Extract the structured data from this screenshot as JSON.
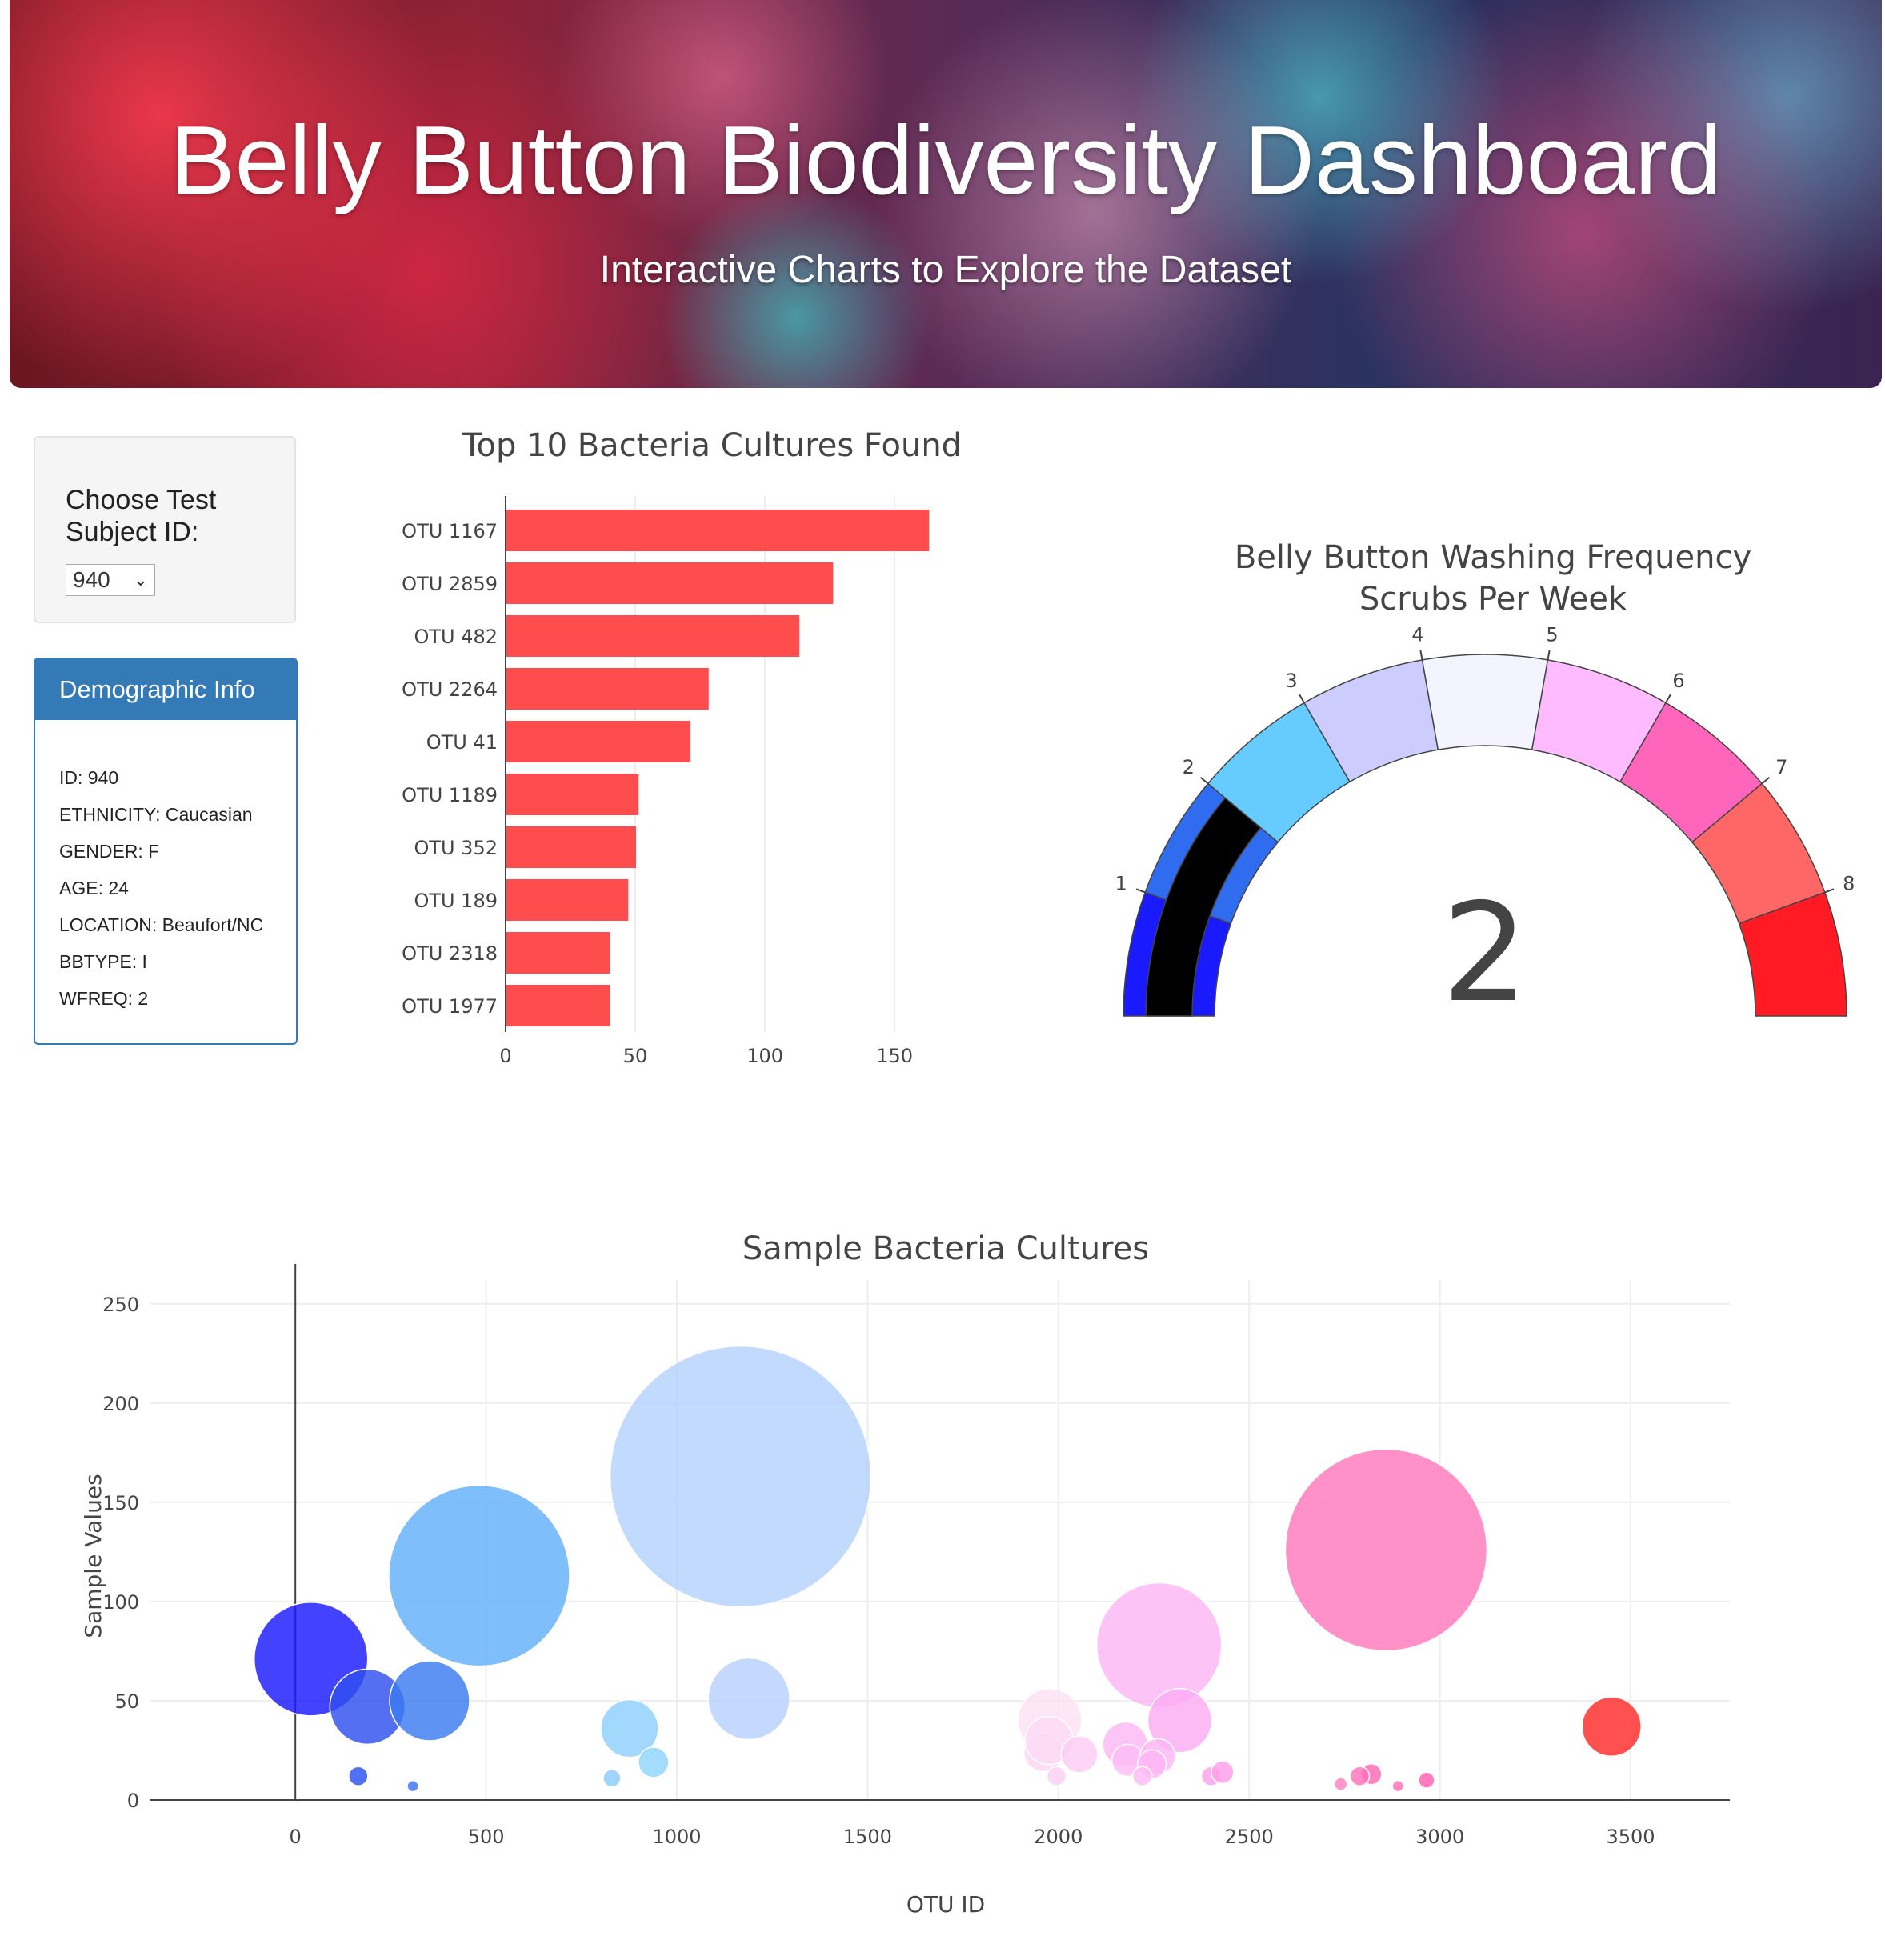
{
  "header": {
    "title": "Belly Button Biodiversity Dashboard",
    "subtitle": "Interactive Charts to Explore the Dataset"
  },
  "selector": {
    "label": "Choose Test Subject ID:",
    "selected": "940"
  },
  "demographics": {
    "heading": "Demographic Info",
    "lines": [
      "ID: 940",
      "ETHNICITY: Caucasian",
      "GENDER: F",
      "AGE: 24",
      "LOCATION: Beaufort/NC",
      "BBTYPE: I",
      "WFREQ: 2"
    ]
  },
  "colors": {
    "bar": "#ff4d4d",
    "panel_blue": "#337ab7",
    "gauge_needle": "#000000"
  },
  "chart_data": [
    {
      "type": "bar",
      "orientation": "horizontal",
      "title": "Top 10 Bacteria Cultures Found",
      "categories": [
        "OTU 1167",
        "OTU 2859",
        "OTU 482",
        "OTU 2264",
        "OTU 41",
        "OTU 1189",
        "OTU 352",
        "OTU 189",
        "OTU 2318",
        "OTU 1977"
      ],
      "values": [
        163,
        126,
        113,
        78,
        71,
        51,
        50,
        47,
        40,
        40
      ],
      "xlim": [
        0,
        170
      ],
      "xticks": [
        "0",
        "50",
        "100",
        "150"
      ],
      "grid": "vertical"
    },
    {
      "type": "gauge",
      "title": "Belly Button Washing Frequency",
      "subtitle": "Scrubs Per Week",
      "range": [
        0,
        9
      ],
      "value": 2,
      "value_label": "2",
      "tick_labels": [
        "1",
        "2",
        "3",
        "4",
        "5",
        "6",
        "7",
        "8"
      ],
      "band_colors": [
        "#1a1aff",
        "#2f6cf0",
        "#66ccff",
        "#ccccff",
        "#f4f4ff",
        "#ffbbff",
        "#ff66bb",
        "#ff6666",
        "#ff1a24"
      ]
    },
    {
      "type": "scatter",
      "title": "Sample Bacteria Cultures",
      "xlabel": "OTU ID",
      "ylabel": "Sample Values",
      "xlim": [
        -380,
        3760
      ],
      "ylim": [
        0,
        262
      ],
      "xticks": [
        0,
        500,
        1000,
        1500,
        2000,
        2500,
        3000,
        3500
      ],
      "yticks": [
        0,
        50,
        100,
        150,
        200,
        250
      ],
      "grid": true,
      "points": [
        {
          "x": 41,
          "y": 71,
          "c": "#1a1aff"
        },
        {
          "x": 189,
          "y": 47,
          "c": "#2f4ff0"
        },
        {
          "x": 352,
          "y": 50,
          "c": "#3a7af0"
        },
        {
          "x": 482,
          "y": 113,
          "c": "#60b0fa"
        },
        {
          "x": 165,
          "y": 12,
          "c": "#2a52f0"
        },
        {
          "x": 308,
          "y": 7,
          "c": "#3a70f0"
        },
        {
          "x": 876,
          "y": 36,
          "c": "#8fd0fc"
        },
        {
          "x": 939,
          "y": 19,
          "c": "#90d4fc"
        },
        {
          "x": 830,
          "y": 11,
          "c": "#8cccfc"
        },
        {
          "x": 1167,
          "y": 163,
          "c": "#b4d2fc"
        },
        {
          "x": 1189,
          "y": 51,
          "c": "#b8cffc"
        },
        {
          "x": 1977,
          "y": 40,
          "c": "#fce0f4"
        },
        {
          "x": 1960,
          "y": 24,
          "c": "#fcd4f4"
        },
        {
          "x": 1975,
          "y": 30,
          "c": "#fcdaf4"
        },
        {
          "x": 2055,
          "y": 23,
          "c": "#fcccf4"
        },
        {
          "x": 2264,
          "y": 78,
          "c": "#fcb4f4"
        },
        {
          "x": 2318,
          "y": 40,
          "c": "#fcacf4"
        },
        {
          "x": 2175,
          "y": 28,
          "c": "#fcb8f4"
        },
        {
          "x": 2182,
          "y": 20,
          "c": "#fcbcf4"
        },
        {
          "x": 2260,
          "y": 22,
          "c": "#fcb4f4"
        },
        {
          "x": 2245,
          "y": 18,
          "c": "#fcb6f4"
        },
        {
          "x": 2859,
          "y": 126,
          "c": "#ff78bc"
        },
        {
          "x": 2820,
          "y": 13,
          "c": "#ff6ab4"
        },
        {
          "x": 2790,
          "y": 12,
          "c": "#ff70b8"
        },
        {
          "x": 2740,
          "y": 8,
          "c": "#ff80c0"
        },
        {
          "x": 2890,
          "y": 7,
          "c": "#ff70b8"
        },
        {
          "x": 2965,
          "y": 10,
          "c": "#ff60b0"
        },
        {
          "x": 2400,
          "y": 12,
          "c": "#fca0ec"
        },
        {
          "x": 2430,
          "y": 14,
          "c": "#fc9ce8"
        },
        {
          "x": 3450,
          "y": 37,
          "c": "#ff2a2a"
        },
        {
          "x": 1995,
          "y": 12,
          "c": "#fcd0f4"
        },
        {
          "x": 2220,
          "y": 12,
          "c": "#fcbcf4"
        }
      ],
      "sizes": [
        71,
        47,
        50,
        113,
        12,
        7,
        36,
        19,
        11,
        163,
        51,
        40,
        24,
        30,
        23,
        78,
        40,
        28,
        20,
        22,
        18,
        126,
        13,
        12,
        8,
        7,
        10,
        12,
        14,
        37,
        12,
        12
      ]
    }
  ]
}
